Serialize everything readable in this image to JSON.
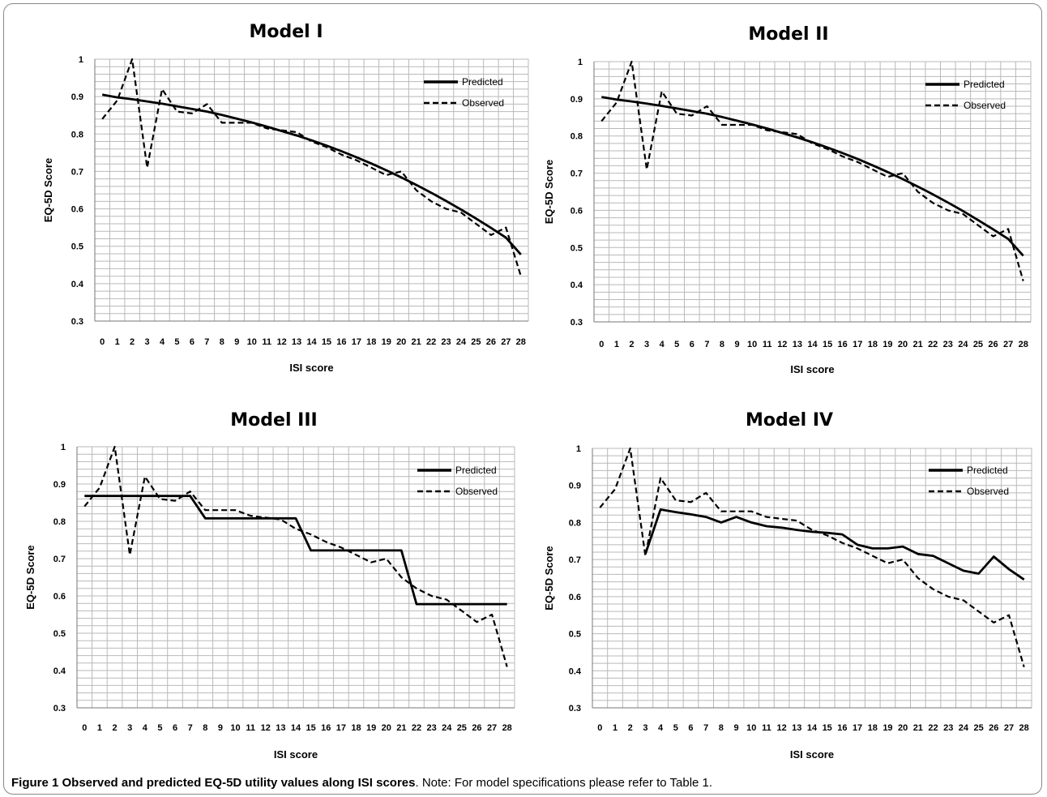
{
  "caption": {
    "title": "Figure 1 Observed and predicted EQ-5D utility values along ISI scores",
    "note": ". Note: For model specifications please refer to Table 1."
  },
  "colors": {
    "line": "#000000",
    "grid": "#b9b9b9",
    "border": "#888888"
  },
  "chart_data": [
    {
      "type": "line",
      "title": "Model I",
      "xlabel": "ISI score",
      "ylabel": "EQ-5D Score",
      "categories": [
        "0",
        "1",
        "2",
        "3",
        "4",
        "5",
        "6",
        "7",
        "8",
        "9",
        "10",
        "11",
        "12",
        "13",
        "14",
        "15",
        "16",
        "17",
        "18",
        "19",
        "20",
        "21",
        "22",
        "23",
        "24",
        "25",
        "26",
        "27",
        "28"
      ],
      "ylim": [
        0.3,
        1
      ],
      "yticks": [
        "0.3",
        "0.4",
        "0.5",
        "0.6",
        "0.7",
        "0.8",
        "0.9",
        "1"
      ],
      "grid": true,
      "legend": "top-right",
      "series": [
        {
          "name": "Predicted",
          "style": "solid",
          "values": [
            0.905,
            0.898,
            0.893,
            0.887,
            0.881,
            0.874,
            0.867,
            0.86,
            0.851,
            0.841,
            0.831,
            0.82,
            0.808,
            0.796,
            0.783,
            0.769,
            0.754,
            0.738,
            0.721,
            0.703,
            0.684,
            0.664,
            0.643,
            0.621,
            0.598,
            0.574,
            0.549,
            0.523,
            0.478
          ]
        },
        {
          "name": "Observed",
          "style": "dashed",
          "values": [
            0.84,
            0.89,
            1.0,
            0.71,
            0.92,
            0.86,
            0.855,
            0.88,
            0.83,
            0.83,
            0.83,
            0.815,
            0.81,
            0.805,
            0.78,
            0.765,
            0.745,
            0.73,
            0.71,
            0.69,
            0.7,
            0.65,
            0.62,
            0.6,
            0.59,
            0.56,
            0.53,
            0.55,
            0.42
          ]
        }
      ]
    },
    {
      "type": "line",
      "title": "Model II",
      "xlabel": "ISI score",
      "ylabel": "EQ-5D Score",
      "categories": [
        "0",
        "1",
        "2",
        "3",
        "4",
        "5",
        "6",
        "7",
        "8",
        "9",
        "10",
        "11",
        "12",
        "13",
        "14",
        "15",
        "16",
        "17",
        "18",
        "19",
        "20",
        "21",
        "22",
        "23",
        "24",
        "25",
        "26",
        "27",
        "28"
      ],
      "ylim": [
        0.3,
        1
      ],
      "yticks": [
        "0.3",
        "0.4",
        "0.5",
        "0.6",
        "0.7",
        "0.8",
        "0.9",
        "1"
      ],
      "grid": true,
      "legend": "top-right",
      "series": [
        {
          "name": "Predicted",
          "style": "solid",
          "values": [
            0.905,
            0.898,
            0.893,
            0.887,
            0.881,
            0.874,
            0.867,
            0.86,
            0.851,
            0.841,
            0.831,
            0.82,
            0.808,
            0.796,
            0.783,
            0.769,
            0.754,
            0.738,
            0.721,
            0.703,
            0.684,
            0.664,
            0.643,
            0.621,
            0.598,
            0.574,
            0.549,
            0.523,
            0.478
          ]
        },
        {
          "name": "Observed",
          "style": "dashed",
          "values": [
            0.84,
            0.89,
            1.0,
            0.71,
            0.92,
            0.86,
            0.855,
            0.88,
            0.83,
            0.83,
            0.83,
            0.815,
            0.81,
            0.805,
            0.78,
            0.765,
            0.745,
            0.73,
            0.71,
            0.69,
            0.7,
            0.65,
            0.62,
            0.6,
            0.59,
            0.56,
            0.53,
            0.55,
            0.41
          ]
        }
      ]
    },
    {
      "type": "line",
      "title": "Model III",
      "xlabel": "ISI score",
      "ylabel": "EQ-5D Score",
      "categories": [
        "0",
        "1",
        "2",
        "3",
        "4",
        "5",
        "6",
        "7",
        "8",
        "9",
        "10",
        "11",
        "12",
        "13",
        "14",
        "15",
        "16",
        "17",
        "18",
        "19",
        "20",
        "21",
        "22",
        "23",
        "24",
        "25",
        "26",
        "27",
        "28"
      ],
      "ylim": [
        0.3,
        1
      ],
      "yticks": [
        "0.3",
        "0.4",
        "0.5",
        "0.6",
        "0.7",
        "0.8",
        "0.9",
        "1"
      ],
      "grid": true,
      "legend": "top-right",
      "series": [
        {
          "name": "Predicted",
          "style": "solid",
          "values": [
            0.868,
            0.868,
            0.868,
            0.868,
            0.868,
            0.868,
            0.868,
            0.868,
            0.808,
            0.808,
            0.808,
            0.808,
            0.808,
            0.808,
            0.808,
            0.722,
            0.722,
            0.722,
            0.722,
            0.722,
            0.722,
            0.722,
            0.578,
            0.578,
            0.578,
            0.578,
            0.578,
            0.578,
            0.578
          ]
        },
        {
          "name": "Observed",
          "style": "dashed",
          "values": [
            0.84,
            0.89,
            1.0,
            0.71,
            0.92,
            0.86,
            0.855,
            0.88,
            0.83,
            0.83,
            0.83,
            0.815,
            0.81,
            0.805,
            0.78,
            0.765,
            0.745,
            0.73,
            0.71,
            0.69,
            0.7,
            0.65,
            0.62,
            0.6,
            0.59,
            0.56,
            0.53,
            0.55,
            0.41
          ]
        }
      ]
    },
    {
      "type": "line",
      "title": "Model IV",
      "xlabel": "ISI score",
      "ylabel": "EQ-5D Score",
      "categories": [
        "0",
        "1",
        "2",
        "3",
        "4",
        "5",
        "6",
        "7",
        "8",
        "9",
        "10",
        "11",
        "12",
        "13",
        "14",
        "15",
        "16",
        "17",
        "18",
        "19",
        "20",
        "21",
        "22",
        "23",
        "24",
        "25",
        "26",
        "27",
        "28"
      ],
      "ylim": [
        0.3,
        1
      ],
      "yticks": [
        "0.3",
        "0.4",
        "0.5",
        "0.6",
        "0.7",
        "0.8",
        "0.9",
        "1"
      ],
      "grid": true,
      "legend": "top-right",
      "series": [
        {
          "name": "Predicted",
          "style": "solid",
          "start": 3,
          "values": [
            null,
            null,
            null,
            0.715,
            0.835,
            0.828,
            0.822,
            0.815,
            0.8,
            0.815,
            0.8,
            0.79,
            0.786,
            0.78,
            0.775,
            0.772,
            0.768,
            0.74,
            0.73,
            0.73,
            0.735,
            0.715,
            0.71,
            0.69,
            0.67,
            0.662,
            0.708,
            0.674,
            0.646
          ]
        },
        {
          "name": "Observed",
          "style": "dashed",
          "values": [
            0.84,
            0.89,
            1.0,
            0.71,
            0.92,
            0.86,
            0.855,
            0.88,
            0.83,
            0.83,
            0.83,
            0.815,
            0.81,
            0.805,
            0.78,
            0.765,
            0.745,
            0.73,
            0.71,
            0.69,
            0.7,
            0.65,
            0.62,
            0.6,
            0.59,
            0.56,
            0.53,
            0.55,
            0.41
          ]
        }
      ]
    }
  ]
}
